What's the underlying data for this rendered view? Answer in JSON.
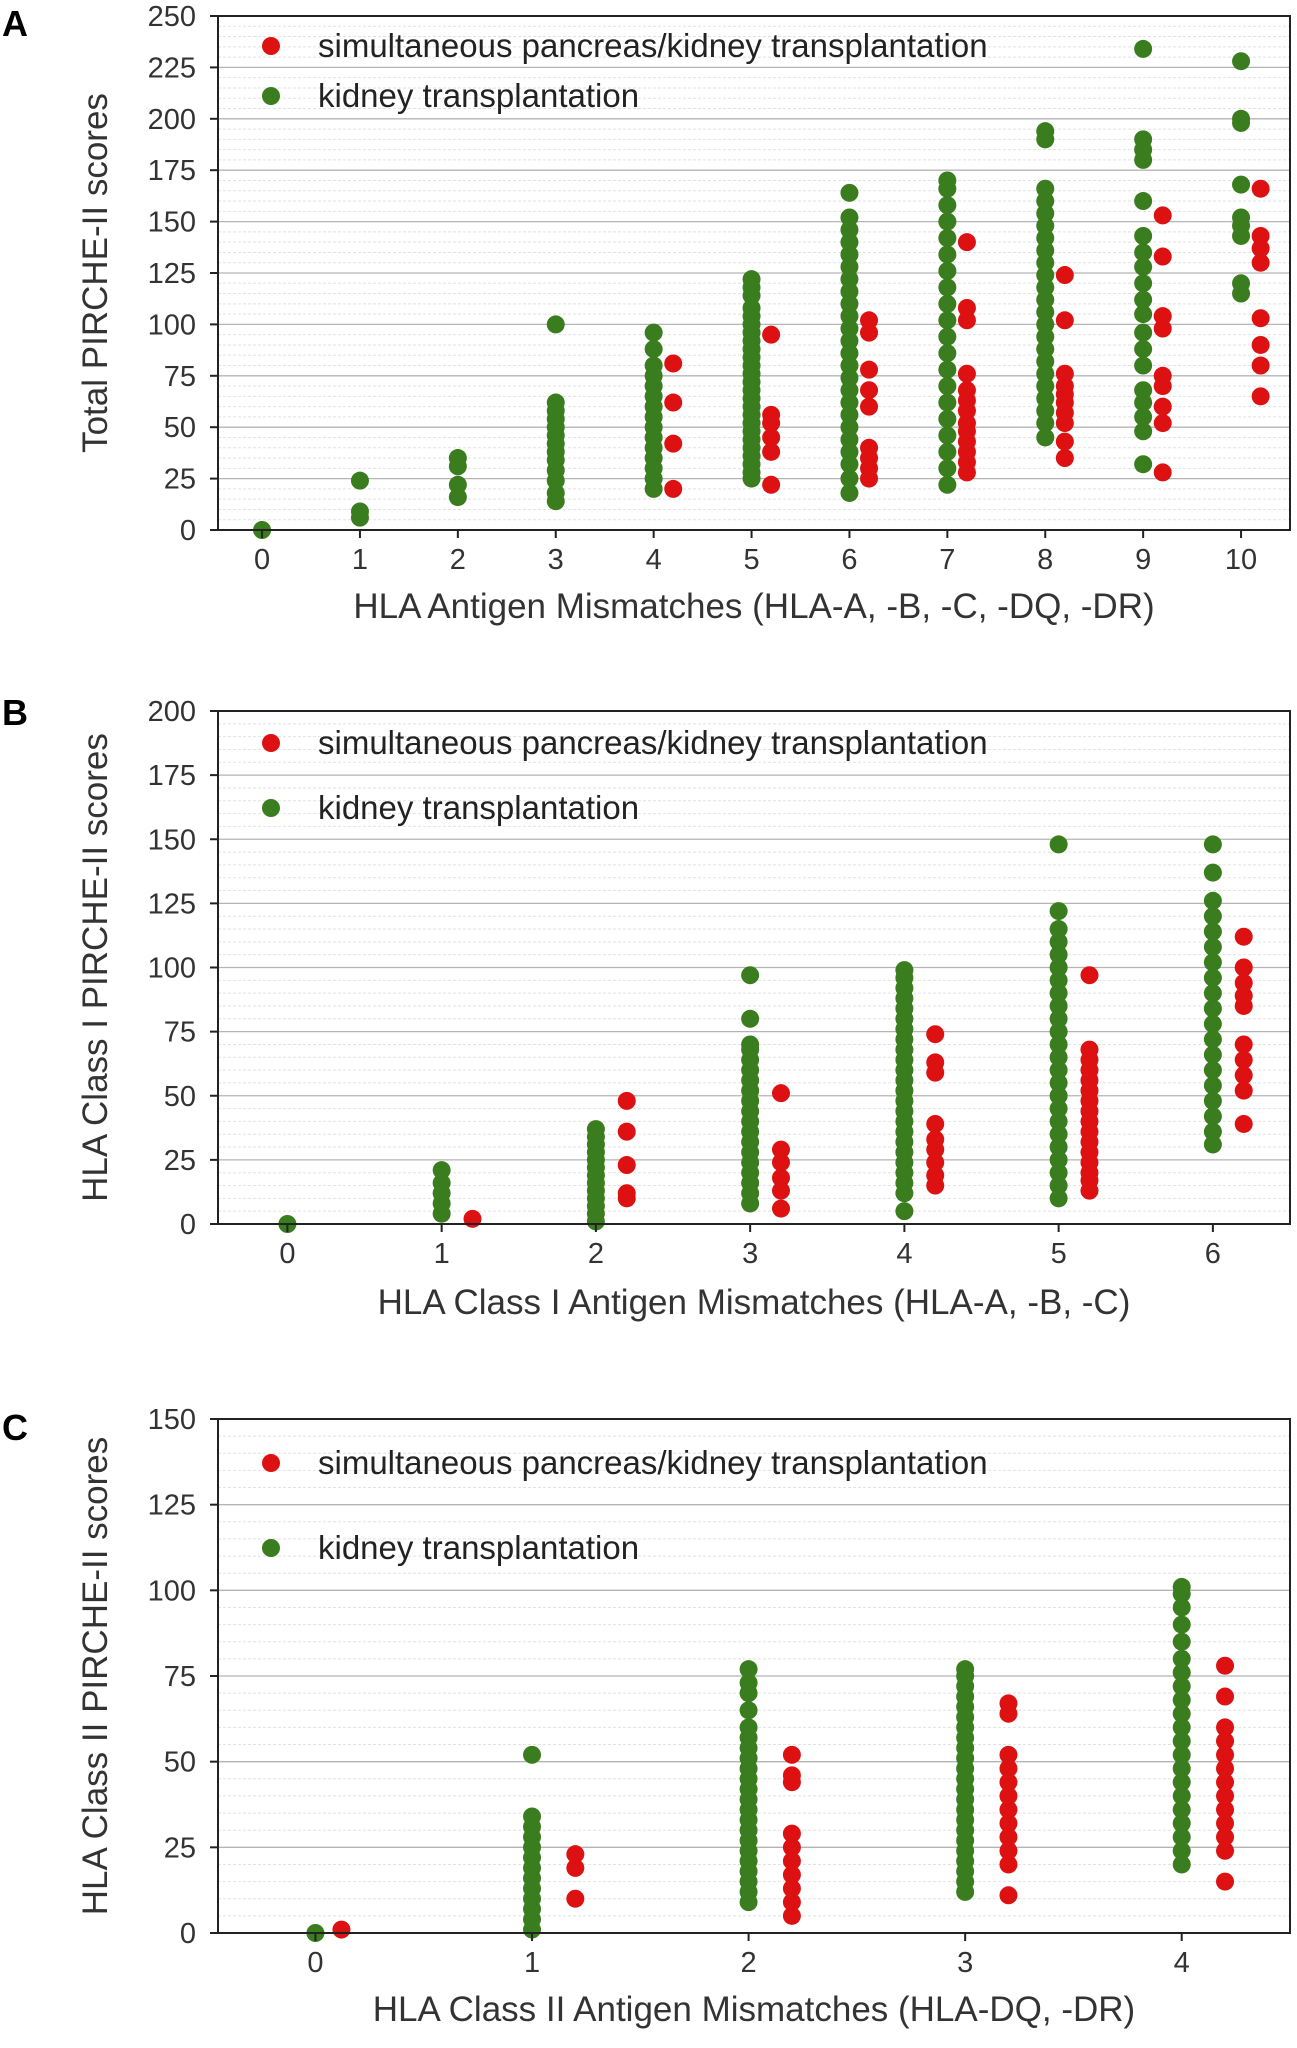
{
  "colors": {
    "spk": "#dd1111",
    "kidney": "#3a7d1e"
  },
  "chart_data": [
    {
      "panel": "A",
      "type": "scatter",
      "xlabel": "HLA Antigen Mismatches (HLA-A, -B, -C, -DQ, -DR)",
      "ylabel": "Total PIRCHE-II scores",
      "xlim": [
        -0.45,
        10.5
      ],
      "ylim": [
        0,
        250
      ],
      "x_ticks": [
        0,
        1,
        2,
        3,
        4,
        5,
        6,
        7,
        8,
        9,
        10
      ],
      "y_ticks": [
        0,
        25,
        50,
        75,
        100,
        125,
        150,
        175,
        200,
        225,
        250
      ],
      "grid": true,
      "legend_position": "top-left",
      "series": [
        {
          "name": "simultaneous pancreas/kidney transplantation",
          "color": "#dd1111",
          "points": [
            {
              "x": 4,
              "y": [
                20,
                42,
                62,
                81
              ]
            },
            {
              "x": 5,
              "y": [
                22,
                38,
                45,
                52,
                56,
                95
              ]
            },
            {
              "x": 6,
              "y": [
                25,
                30,
                35,
                40,
                60,
                68,
                78,
                96,
                102
              ]
            },
            {
              "x": 7,
              "y": [
                28,
                33,
                38,
                43,
                48,
                52,
                58,
                63,
                68,
                76,
                102,
                108,
                140
              ]
            },
            {
              "x": 8,
              "y": [
                35,
                43,
                52,
                57,
                62,
                66,
                70,
                76,
                102,
                124
              ]
            },
            {
              "x": 9,
              "y": [
                28,
                52,
                60,
                70,
                75,
                98,
                104,
                133,
                153
              ]
            },
            {
              "x": 10,
              "y": [
                65,
                80,
                90,
                103,
                130,
                137,
                143,
                166
              ]
            }
          ]
        },
        {
          "name": "kidney transplantation",
          "color": "#3a7d1e",
          "points": [
            {
              "x": 0,
              "y": [
                0
              ]
            },
            {
              "x": 1,
              "y": [
                6,
                9,
                24
              ]
            },
            {
              "x": 2,
              "y": [
                16,
                22,
                31,
                35
              ]
            },
            {
              "x": 3,
              "y": [
                14,
                18,
                24,
                29,
                34,
                38,
                42,
                46,
                50,
                54,
                58,
                62,
                100
              ]
            },
            {
              "x": 4,
              "y": [
                20,
                25,
                30,
                35,
                40,
                45,
                50,
                55,
                60,
                65,
                70,
                75,
                80,
                88,
                96
              ]
            },
            {
              "x": 5,
              "y": [
                25,
                28,
                32,
                36,
                40,
                44,
                48,
                52,
                56,
                60,
                64,
                68,
                72,
                76,
                80,
                84,
                88,
                92,
                96,
                100,
                104,
                108,
                114,
                118,
                122
              ]
            },
            {
              "x": 6,
              "y": [
                18,
                25,
                32,
                38,
                44,
                50,
                56,
                62,
                68,
                74,
                80,
                86,
                92,
                98,
                104,
                110,
                116,
                122,
                128,
                134,
                140,
                146,
                152,
                164
              ]
            },
            {
              "x": 7,
              "y": [
                22,
                30,
                38,
                46,
                54,
                62,
                70,
                78,
                86,
                94,
                102,
                110,
                118,
                126,
                134,
                142,
                150,
                158,
                166,
                170
              ]
            },
            {
              "x": 8,
              "y": [
                45,
                52,
                58,
                64,
                70,
                76,
                82,
                88,
                94,
                100,
                106,
                112,
                118,
                124,
                130,
                136,
                142,
                148,
                154,
                160,
                166,
                190,
                194
              ]
            },
            {
              "x": 9,
              "y": [
                32,
                48,
                55,
                62,
                68,
                80,
                88,
                96,
                105,
                112,
                120,
                128,
                135,
                143,
                160,
                180,
                185,
                190,
                234
              ]
            },
            {
              "x": 10,
              "y": [
                115,
                120,
                143,
                148,
                152,
                168,
                198,
                200,
                228
              ]
            }
          ]
        }
      ]
    },
    {
      "panel": "B",
      "type": "scatter",
      "xlabel": "HLA Class I Antigen Mismatches (HLA-A, -B, -C)",
      "ylabel": "HLA Class I PIRCHE-II scores",
      "xlim": [
        -0.45,
        6.5
      ],
      "ylim": [
        0,
        200
      ],
      "x_ticks": [
        0,
        1,
        2,
        3,
        4,
        5,
        6
      ],
      "y_ticks": [
        0,
        25,
        50,
        75,
        100,
        125,
        150,
        175,
        200
      ],
      "grid": true,
      "legend_position": "top-left",
      "series": [
        {
          "name": "simultaneous pancreas/kidney transplantation",
          "color": "#dd1111",
          "points": [
            {
              "x": 1,
              "y": [
                2
              ]
            },
            {
              "x": 2,
              "y": [
                10,
                12,
                23,
                36,
                48
              ]
            },
            {
              "x": 3,
              "y": [
                6,
                13,
                18,
                24,
                29,
                51
              ]
            },
            {
              "x": 4,
              "y": [
                15,
                19,
                24,
                29,
                33,
                39,
                59,
                63,
                74
              ]
            },
            {
              "x": 5,
              "y": [
                13,
                17,
                20,
                24,
                28,
                32,
                36,
                40,
                44,
                48,
                52,
                56,
                60,
                64,
                68,
                97
              ]
            },
            {
              "x": 6,
              "y": [
                39,
                52,
                58,
                64,
                70,
                85,
                89,
                94,
                100,
                112
              ]
            }
          ]
        },
        {
          "name": "kidney transplantation",
          "color": "#3a7d1e",
          "points": [
            {
              "x": 0,
              "y": [
                0
              ]
            },
            {
              "x": 1,
              "y": [
                4,
                8,
                12,
                16,
                21
              ]
            },
            {
              "x": 2,
              "y": [
                1,
                4,
                7,
                10,
                13,
                16,
                19,
                22,
                25,
                28,
                31,
                34,
                37
              ]
            },
            {
              "x": 3,
              "y": [
                8,
                12,
                16,
                20,
                24,
                28,
                32,
                36,
                40,
                44,
                48,
                52,
                56,
                60,
                64,
                68,
                70,
                80,
                97
              ]
            },
            {
              "x": 4,
              "y": [
                5,
                12,
                16,
                20,
                24,
                28,
                32,
                36,
                40,
                44,
                48,
                52,
                56,
                60,
                64,
                68,
                72,
                76,
                80,
                84,
                88,
                92,
                96,
                99
              ]
            },
            {
              "x": 5,
              "y": [
                10,
                15,
                20,
                25,
                30,
                35,
                40,
                45,
                50,
                55,
                60,
                65,
                70,
                75,
                80,
                85,
                90,
                95,
                100,
                105,
                110,
                115,
                122,
                148
              ]
            },
            {
              "x": 6,
              "y": [
                31,
                36,
                42,
                48,
                54,
                60,
                66,
                72,
                78,
                84,
                90,
                96,
                102,
                108,
                114,
                120,
                126,
                137,
                148
              ]
            }
          ]
        }
      ]
    },
    {
      "panel": "C",
      "type": "scatter",
      "xlabel": "HLA Class II Antigen Mismatches (HLA-DQ, -DR)",
      "ylabel": "HLA Class II PIRCHE-II scores",
      "xlim": [
        -0.45,
        4.5
      ],
      "ylim": [
        0,
        150
      ],
      "x_ticks": [
        0,
        1,
        2,
        3,
        4
      ],
      "y_ticks": [
        0,
        25,
        50,
        75,
        100,
        125,
        150
      ],
      "grid": true,
      "legend_position": "top-left",
      "series": [
        {
          "name": "simultaneous pancreas/kidney transplantation",
          "color": "#dd1111",
          "points": [
            {
              "x": 0,
              "y": [
                1
              ]
            },
            {
              "x": 1,
              "y": [
                10,
                19,
                23
              ]
            },
            {
              "x": 2,
              "y": [
                5,
                9,
                13,
                17,
                21,
                25,
                29,
                44,
                46,
                52
              ]
            },
            {
              "x": 3,
              "y": [
                11,
                20,
                24,
                28,
                32,
                36,
                40,
                44,
                48,
                52,
                64,
                67
              ]
            },
            {
              "x": 4,
              "y": [
                15,
                24,
                28,
                32,
                36,
                40,
                44,
                48,
                52,
                56,
                60,
                69,
                78
              ]
            }
          ]
        },
        {
          "name": "kidney transplantation",
          "color": "#3a7d1e",
          "points": [
            {
              "x": 0,
              "y": [
                0
              ]
            },
            {
              "x": 1,
              "y": [
                1,
                4,
                7,
                10,
                13,
                16,
                19,
                22,
                25,
                28,
                31,
                34,
                52
              ]
            },
            {
              "x": 2,
              "y": [
                9,
                12,
                15,
                18,
                21,
                24,
                27,
                30,
                33,
                36,
                39,
                42,
                45,
                48,
                51,
                54,
                57,
                60,
                65,
                70,
                73,
                77
              ]
            },
            {
              "x": 3,
              "y": [
                12,
                15,
                18,
                21,
                24,
                27,
                30,
                33,
                36,
                39,
                42,
                45,
                48,
                51,
                54,
                57,
                60,
                63,
                66,
                69,
                72,
                75,
                77
              ]
            },
            {
              "x": 4,
              "y": [
                20,
                24,
                28,
                32,
                36,
                40,
                44,
                48,
                52,
                56,
                60,
                64,
                68,
                72,
                76,
                80,
                85,
                90,
                95,
                99,
                101
              ]
            }
          ]
        }
      ]
    }
  ]
}
